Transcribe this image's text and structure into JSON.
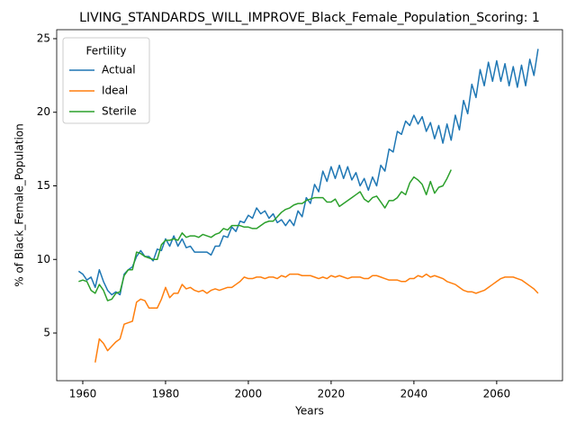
{
  "chart_data": {
    "type": "line",
    "title": "LIVING_STANDARDS_WILL_IMPROVE_Black_Female_Population_Scoring: 1",
    "x_label": "Years",
    "y_label": "% of Black_Female_Population",
    "legend_title": "Fertility",
    "legend": "upper left",
    "grid": false,
    "xlim": [
      1953.7,
      2075.9
    ],
    "ylim": [
      1.76,
      25.61
    ],
    "xticks": [
      1960,
      1980,
      2000,
      2020,
      2040,
      2060
    ],
    "yticks": [
      5,
      10,
      15,
      20,
      25
    ],
    "x": [
      1959,
      1960,
      1961,
      1962,
      1963,
      1964,
      1965,
      1966,
      1967,
      1968,
      1969,
      1970,
      1971,
      1972,
      1973,
      1974,
      1975,
      1976,
      1977,
      1978,
      1979,
      1980,
      1981,
      1982,
      1983,
      1984,
      1985,
      1986,
      1987,
      1988,
      1989,
      1990,
      1991,
      1992,
      1993,
      1994,
      1995,
      1996,
      1997,
      1998,
      1999,
      2000,
      2001,
      2002,
      2003,
      2004,
      2005,
      2006,
      2007,
      2008,
      2009,
      2010,
      2011,
      2012,
      2013,
      2014,
      2015,
      2016,
      2017,
      2018,
      2019,
      2020,
      2021,
      2022,
      2023,
      2024,
      2025,
      2026,
      2027,
      2028,
      2029,
      2030,
      2031,
      2032,
      2033,
      2034,
      2035,
      2036,
      2037,
      2038,
      2039,
      2040,
      2041,
      2042,
      2043,
      2044,
      2045,
      2046,
      2047,
      2048,
      2049,
      2050,
      2051,
      2052,
      2053,
      2054,
      2055,
      2056,
      2057,
      2058,
      2059,
      2060,
      2061,
      2062,
      2063,
      2064,
      2065,
      2066,
      2067,
      2068,
      2069,
      2070
    ],
    "series": [
      {
        "name": "Actual",
        "color": "#1f77b4",
        "values": [
          9.2,
          9.0,
          8.6,
          8.8,
          8.1,
          9.3,
          8.5,
          7.9,
          7.6,
          7.8,
          7.6,
          9.0,
          9.3,
          9.5,
          10.2,
          10.6,
          10.2,
          10.2,
          9.9,
          10.7,
          10.6,
          11.4,
          10.9,
          11.6,
          10.9,
          11.4,
          10.8,
          10.9,
          10.5,
          10.5,
          10.5,
          10.5,
          10.3,
          10.9,
          10.9,
          11.6,
          11.5,
          12.2,
          11.9,
          12.6,
          12.5,
          13.0,
          12.8,
          13.5,
          13.1,
          13.3,
          12.8,
          13.1,
          12.5,
          12.7,
          12.3,
          12.7,
          12.3,
          13.3,
          12.9,
          14.2,
          13.8,
          15.1,
          14.6,
          16.0,
          15.3,
          16.3,
          15.5,
          16.4,
          15.5,
          16.3,
          15.4,
          15.9,
          15.0,
          15.5,
          14.7,
          15.6,
          15.0,
          16.4,
          16.0,
          17.5,
          17.3,
          18.7,
          18.5,
          19.4,
          19.1,
          19.8,
          19.2,
          19.7,
          18.7,
          19.3,
          18.2,
          19.1,
          17.9,
          19.2,
          18.1,
          19.8,
          18.8,
          20.8,
          19.9,
          21.9,
          21.0,
          22.9,
          21.8,
          23.4,
          22.1,
          23.5,
          22.1,
          23.3,
          21.8,
          23.1,
          21.7,
          23.2,
          21.8,
          23.6,
          22.5,
          24.3
        ]
      },
      {
        "name": "Ideal",
        "color": "#ff7f0e",
        "values": [
          null,
          null,
          null,
          null,
          3.0,
          4.6,
          4.3,
          3.8,
          4.1,
          4.4,
          4.6,
          5.6,
          5.7,
          5.8,
          7.1,
          7.3,
          7.2,
          6.7,
          6.7,
          6.7,
          7.3,
          8.1,
          7.4,
          7.7,
          7.7,
          8.3,
          8.0,
          8.1,
          7.9,
          7.8,
          7.9,
          7.7,
          7.9,
          8.0,
          7.9,
          8.0,
          8.1,
          8.1,
          8.3,
          8.5,
          8.8,
          8.7,
          8.7,
          8.8,
          8.8,
          8.7,
          8.8,
          8.8,
          8.7,
          8.9,
          8.8,
          9.0,
          9.0,
          9.0,
          8.9,
          8.9,
          8.9,
          8.8,
          8.7,
          8.8,
          8.7,
          8.9,
          8.8,
          8.9,
          8.8,
          8.7,
          8.8,
          8.8,
          8.8,
          8.7,
          8.7,
          8.9,
          8.9,
          8.8,
          8.7,
          8.6,
          8.6,
          8.6,
          8.5,
          8.5,
          8.7,
          8.7,
          8.9,
          8.8,
          9.0,
          8.8,
          8.9,
          8.8,
          8.7,
          8.5,
          8.4,
          8.3,
          8.1,
          7.9,
          7.8,
          7.8,
          7.7,
          7.8,
          7.9,
          8.1,
          8.3,
          8.5,
          8.7,
          8.8,
          8.8,
          8.8,
          8.7,
          8.6,
          8.4,
          8.2,
          8.0,
          7.7
        ]
      },
      {
        "name": "Sterile",
        "color": "#2ca02c",
        "values": [
          8.5,
          8.6,
          8.5,
          7.9,
          7.7,
          8.3,
          7.9,
          7.2,
          7.3,
          7.7,
          7.8,
          8.9,
          9.3,
          9.3,
          10.5,
          10.4,
          10.2,
          10.1,
          10.0,
          10.0,
          11.0,
          11.3,
          11.3,
          11.4,
          11.3,
          11.8,
          11.5,
          11.6,
          11.6,
          11.5,
          11.7,
          11.6,
          11.5,
          11.7,
          11.8,
          12.1,
          12.0,
          12.3,
          12.3,
          12.3,
          12.2,
          12.2,
          12.1,
          12.1,
          12.3,
          12.5,
          12.6,
          12.6,
          12.9,
          13.2,
          13.4,
          13.5,
          13.7,
          13.8,
          13.8,
          14.0,
          14.1,
          14.2,
          14.2,
          14.2,
          13.9,
          13.9,
          14.1,
          13.6,
          13.8,
          14.0,
          14.2,
          14.4,
          14.6,
          14.1,
          13.9,
          14.2,
          14.3,
          13.9,
          13.5,
          14.0,
          14.0,
          14.2,
          14.6,
          14.4,
          15.2,
          15.6,
          15.4,
          15.1,
          14.4,
          15.3,
          14.5,
          14.9,
          15.0,
          15.5,
          16.1,
          null,
          null,
          null,
          null,
          null,
          null,
          null,
          null,
          null,
          null,
          null,
          null,
          null,
          null,
          null,
          null,
          null,
          null,
          null,
          null,
          null
        ]
      }
    ]
  }
}
